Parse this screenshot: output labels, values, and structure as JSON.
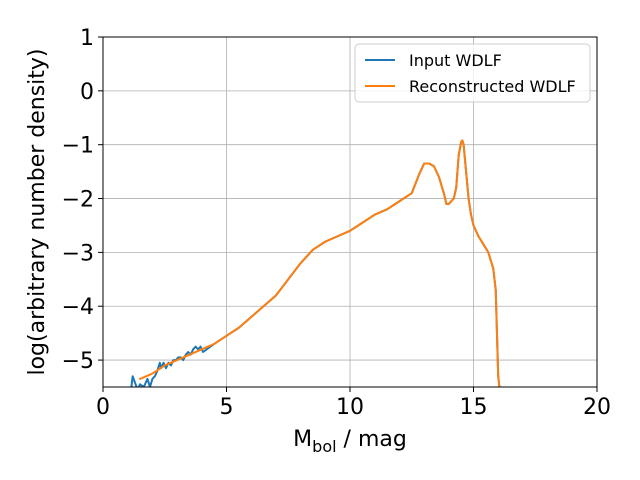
{
  "chart_data": {
    "type": "line",
    "title": "",
    "xlabel": {
      "main": "M",
      "sub": "bol",
      "rest": " / mag"
    },
    "ylabel": "log(arbitrary number density)",
    "xlim": [
      0,
      20
    ],
    "ylim": [
      -5.5,
      1
    ],
    "xticks": [
      0,
      5,
      10,
      15,
      20
    ],
    "yticks": [
      -5,
      -4,
      -3,
      -2,
      -1,
      0,
      1
    ],
    "ytick_labels": [
      "−5",
      "−4",
      "−3",
      "−2",
      "−1",
      "0",
      "1"
    ],
    "grid": true,
    "legend_position": "top-right",
    "series": [
      {
        "name": "Input WDLF",
        "color": "#1f77b4",
        "x": [
          1.15,
          1.2,
          1.4,
          1.5,
          1.65,
          1.8,
          1.9,
          2.0,
          2.1,
          2.2,
          2.3,
          2.35,
          2.45,
          2.55,
          2.65,
          2.75,
          2.85,
          2.95,
          3.05,
          3.15,
          3.25,
          3.35,
          3.45,
          3.55,
          3.65,
          3.75,
          3.85,
          3.95,
          4.05,
          4.5,
          5.0,
          5.5,
          6.0,
          6.5,
          7.0,
          7.5,
          8.0,
          8.5,
          9.0,
          9.5,
          10.0,
          10.5,
          11.0,
          11.5,
          12.0,
          12.5,
          12.8,
          13.0,
          13.2,
          13.4,
          13.6,
          13.8,
          13.9,
          14.0,
          14.1,
          14.2,
          14.3,
          14.4,
          14.5,
          14.55,
          14.6,
          14.7,
          14.8,
          14.9,
          15.0,
          15.2,
          15.4,
          15.6,
          15.8,
          15.9,
          15.95,
          16.0,
          16.05
        ],
        "y": [
          -5.5,
          -5.3,
          -5.55,
          -5.45,
          -5.5,
          -5.35,
          -5.5,
          -5.35,
          -5.3,
          -5.2,
          -5.05,
          -5.15,
          -5.05,
          -5.15,
          -5.05,
          -5.1,
          -5.0,
          -5.0,
          -4.95,
          -4.95,
          -5.0,
          -4.9,
          -4.85,
          -4.9,
          -4.8,
          -4.75,
          -4.8,
          -4.75,
          -4.85,
          -4.7,
          -4.55,
          -4.4,
          -4.2,
          -4.0,
          -3.8,
          -3.5,
          -3.2,
          -2.95,
          -2.8,
          -2.7,
          -2.6,
          -2.45,
          -2.3,
          -2.2,
          -2.05,
          -1.9,
          -1.55,
          -1.35,
          -1.35,
          -1.4,
          -1.6,
          -1.9,
          -2.1,
          -2.1,
          -2.05,
          -2.0,
          -1.8,
          -1.2,
          -0.95,
          -0.92,
          -1.0,
          -1.5,
          -2.0,
          -2.3,
          -2.5,
          -2.7,
          -2.85,
          -3.0,
          -3.3,
          -3.7,
          -4.5,
          -5.3,
          -5.5
        ]
      },
      {
        "name": "Reconstructed WDLF",
        "color": "#ff7f0e",
        "x": [
          1.5,
          2.0,
          2.5,
          3.0,
          3.5,
          4.0,
          4.5,
          5.0,
          5.5,
          6.0,
          6.5,
          7.0,
          7.5,
          8.0,
          8.5,
          9.0,
          9.5,
          10.0,
          10.5,
          11.0,
          11.5,
          12.0,
          12.5,
          12.8,
          13.0,
          13.2,
          13.4,
          13.6,
          13.8,
          13.9,
          14.0,
          14.1,
          14.2,
          14.3,
          14.4,
          14.5,
          14.55,
          14.6,
          14.7,
          14.8,
          14.9,
          15.0,
          15.2,
          15.4,
          15.6,
          15.8,
          15.9,
          15.95,
          16.0,
          16.05
        ],
        "y": [
          -5.35,
          -5.25,
          -5.1,
          -5.0,
          -4.9,
          -4.8,
          -4.7,
          -4.55,
          -4.4,
          -4.2,
          -4.0,
          -3.8,
          -3.5,
          -3.2,
          -2.95,
          -2.8,
          -2.7,
          -2.6,
          -2.45,
          -2.3,
          -2.2,
          -2.05,
          -1.9,
          -1.55,
          -1.35,
          -1.35,
          -1.4,
          -1.6,
          -1.9,
          -2.1,
          -2.1,
          -2.05,
          -2.0,
          -1.8,
          -1.2,
          -0.95,
          -0.92,
          -1.0,
          -1.5,
          -2.0,
          -2.3,
          -2.5,
          -2.7,
          -2.85,
          -3.0,
          -3.3,
          -3.7,
          -4.5,
          -5.3,
          -5.5
        ]
      }
    ]
  }
}
